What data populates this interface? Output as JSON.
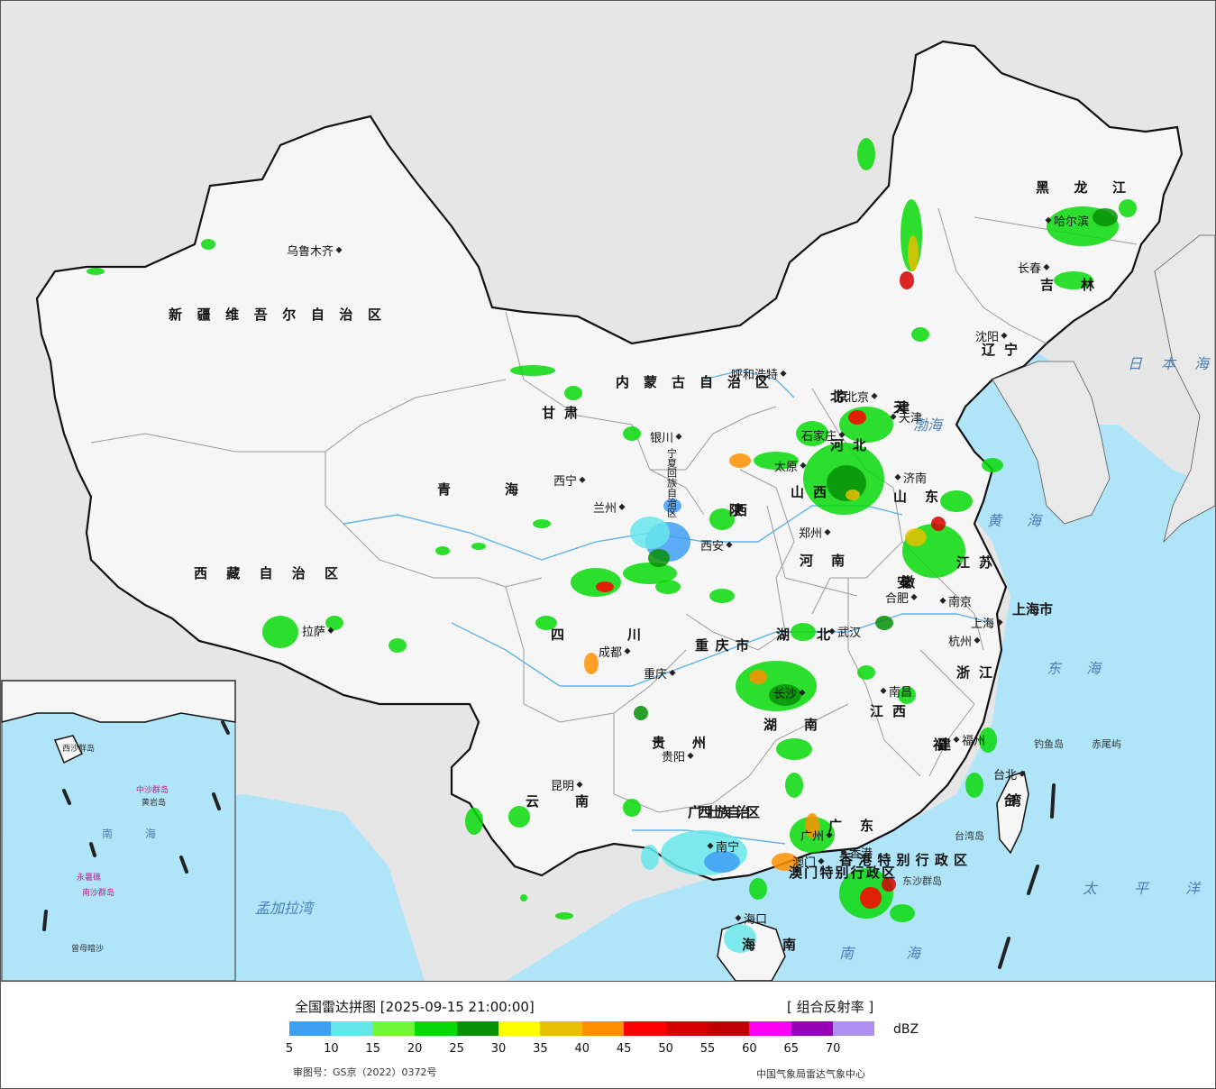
{
  "legend": {
    "title": "全国雷达拼图 [2025-09-15 21:00:00]",
    "product": "[ 组合反射率 ]",
    "unit": "dBZ",
    "ticks": [
      "5",
      "10",
      "15",
      "20",
      "25",
      "30",
      "35",
      "40",
      "45",
      "50",
      "55",
      "60",
      "65",
      "70"
    ],
    "colors": [
      "#3f9ff3",
      "#66e6ea",
      "#72f53a",
      "#08d90a",
      "#078f07",
      "#ffff00",
      "#e6c000",
      "#ff9000",
      "#ff0000",
      "#d60000",
      "#c00000",
      "#ff00f0",
      "#9600b4",
      "#ad90f0"
    ],
    "approval": "审图号：GS京（2022）0372号",
    "source": "中国气象局雷达气象中心"
  },
  "map": {
    "colors": {
      "land": "#f6f6f6",
      "outside": "#e6e6e6",
      "water": "#b0e4f8",
      "border": "#111111",
      "province_border": "#9a9a9a",
      "river": "#63b3e8"
    },
    "provinces": [
      {
        "name": "新疆维吾尔自治区"
      },
      {
        "name": "西藏自治区"
      },
      {
        "name": "青海"
      },
      {
        "name": "甘肃"
      },
      {
        "name": "内蒙古自治区"
      },
      {
        "name": "黑龙江"
      },
      {
        "name": "吉林"
      },
      {
        "name": "辽宁"
      },
      {
        "name": "河北"
      },
      {
        "name": "山西"
      },
      {
        "name": "山东"
      },
      {
        "name": "河南"
      },
      {
        "name": "陕西"
      },
      {
        "name": "宁夏回族自治区"
      },
      {
        "name": "四川"
      },
      {
        "name": "重庆市"
      },
      {
        "name": "湖北"
      },
      {
        "name": "湖南"
      },
      {
        "name": "江西"
      },
      {
        "name": "安徽"
      },
      {
        "name": "江苏"
      },
      {
        "name": "浙江"
      },
      {
        "name": "福建"
      },
      {
        "name": "广东"
      },
      {
        "name": "广西壮族自治区"
      },
      {
        "name": "贵州"
      },
      {
        "name": "云南"
      },
      {
        "name": "海南"
      },
      {
        "name": "台湾"
      },
      {
        "name": "上海市"
      },
      {
        "name": "北京"
      },
      {
        "name": "天津"
      },
      {
        "name": "香港特别行政区"
      },
      {
        "name": "澳门特别行政区"
      }
    ],
    "cities": [
      {
        "name": "乌鲁木齐"
      },
      {
        "name": "拉萨"
      },
      {
        "name": "西宁"
      },
      {
        "name": "兰州"
      },
      {
        "name": "银川"
      },
      {
        "name": "呼和浩特"
      },
      {
        "name": "哈尔滨"
      },
      {
        "name": "长春"
      },
      {
        "name": "沈阳"
      },
      {
        "name": "北京"
      },
      {
        "name": "天津"
      },
      {
        "name": "石家庄"
      },
      {
        "name": "太原"
      },
      {
        "name": "济南"
      },
      {
        "name": "郑州"
      },
      {
        "name": "西安"
      },
      {
        "name": "成都"
      },
      {
        "name": "重庆"
      },
      {
        "name": "武汉"
      },
      {
        "name": "合肥"
      },
      {
        "name": "南京"
      },
      {
        "name": "上海"
      },
      {
        "name": "杭州"
      },
      {
        "name": "南昌"
      },
      {
        "name": "长沙"
      },
      {
        "name": "贵阳"
      },
      {
        "name": "昆明"
      },
      {
        "name": "南宁"
      },
      {
        "name": "广州"
      },
      {
        "name": "香港"
      },
      {
        "name": "澳门"
      },
      {
        "name": "福州"
      },
      {
        "name": "台北"
      },
      {
        "name": "海口"
      }
    ],
    "seas": [
      "渤海",
      "黄海",
      "东海",
      "日本海",
      "太平洋",
      "南海",
      "孟加拉湾"
    ],
    "islands": [
      "钓鱼岛",
      "赤尾屿",
      "台湾岛",
      "东沙群岛",
      "中沙群岛",
      "西沙群岛",
      "南沙群岛",
      "黄岩岛",
      "永暑礁",
      "曾母暗沙"
    ]
  }
}
